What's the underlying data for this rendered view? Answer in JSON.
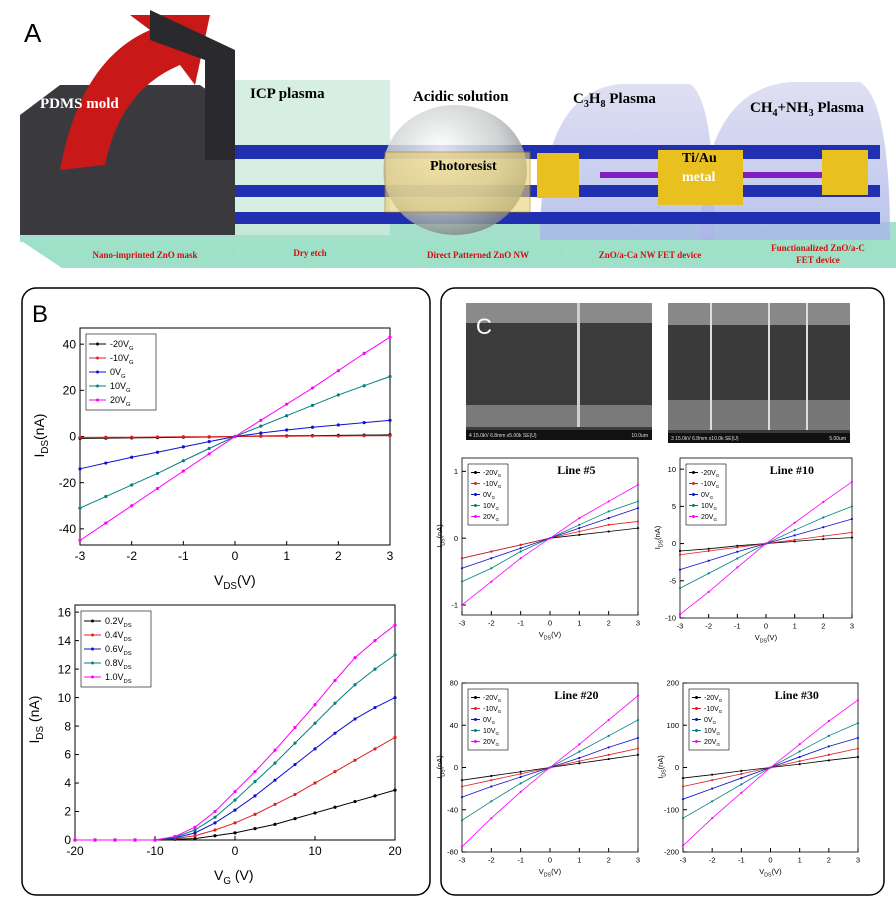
{
  "panel_labels": {
    "a": "A",
    "b": "B",
    "c": "C"
  },
  "diagram": {
    "top_labels": {
      "pdms": "PDMS mold",
      "icp": "ICP plasma",
      "acid": "Acidic solution",
      "c3h8": [
        "C",
        "3",
        "H",
        "8",
        " Plasma"
      ],
      "ch4": [
        "CH",
        "4",
        "+NH",
        "3",
        " Plasma"
      ],
      "photoresist": "Photoresist",
      "metal": [
        "Ti/Au",
        "metal"
      ]
    },
    "steps": [
      "Nano-imprinted ZnO mask",
      "Dry etch",
      "Direct Patterned ZnO NW",
      "ZnO/a-Ca NW FET device",
      [
        "Functionalized ZnO/a-C",
        "FET device"
      ]
    ]
  },
  "sem": [
    {
      "info": "4 15.0kV 6.8mm x5.00k SE(U)",
      "scale": "10.0um"
    },
    {
      "info": "3 15.0kV 6.8mm x10.0k SE(U)",
      "scale": "5.00um"
    }
  ],
  "chart_data": [
    {
      "type": "line",
      "xlabel": [
        "V",
        "DS",
        "(V)"
      ],
      "ylabel": [
        "I",
        "DS",
        "(nA)"
      ],
      "x": [
        -3,
        -2.5,
        -2,
        -1.5,
        -1,
        -0.5,
        0,
        0.5,
        1,
        1.5,
        2,
        2.5,
        3
      ],
      "xlim": [
        -3,
        3
      ],
      "xticks": [
        -3,
        -2,
        -1,
        0,
        1,
        2,
        3
      ],
      "ylim": [
        -47,
        47
      ],
      "yticks": [
        -40,
        -20,
        0,
        20,
        40
      ],
      "series": [
        {
          "name": "-20V",
          "name_sub": "G",
          "color": "#000000",
          "values": [
            -0.8,
            -0.7,
            -0.6,
            -0.5,
            -0.3,
            -0.2,
            0,
            0.2,
            0.3,
            0.4,
            0.5,
            0.6,
            0.7
          ]
        },
        {
          "name": "-10V",
          "name_sub": "G",
          "color": "#e02020",
          "values": [
            -0.4,
            -0.3,
            -0.3,
            -0.2,
            -0.1,
            -0.1,
            0,
            0.1,
            0.1,
            0.2,
            0.2,
            0.3,
            0.3
          ]
        },
        {
          "name": "0V",
          "name_sub": "G",
          "color": "#1010d0",
          "values": [
            -14,
            -11.5,
            -9,
            -6.8,
            -4.5,
            -2.2,
            0,
            1.5,
            2.8,
            4,
            5,
            6,
            7
          ]
        },
        {
          "name": "10V",
          "name_sub": "G",
          "color": "#008080",
          "values": [
            -31,
            -26,
            -21,
            -16,
            -10.5,
            -5.2,
            0,
            4.5,
            9,
            13.5,
            18,
            22,
            26
          ]
        },
        {
          "name": "20V",
          "name_sub": "G",
          "color": "#ff00ff",
          "values": [
            -45,
            -37.5,
            -30,
            -22.5,
            -15,
            -7.5,
            0,
            7,
            14,
            21,
            28.5,
            36,
            43
          ]
        }
      ]
    },
    {
      "type": "line",
      "xlabel": [
        "V",
        "G",
        " (V)"
      ],
      "ylabel": [
        "I",
        "DS",
        " (nA)"
      ],
      "x": [
        -20,
        -17.5,
        -15,
        -12.5,
        -10,
        -7.5,
        -5,
        -2.5,
        0,
        2.5,
        5,
        7.5,
        10,
        12.5,
        15,
        17.5,
        20
      ],
      "xlim": [
        -20,
        20
      ],
      "xticks": [
        -20,
        -10,
        0,
        10,
        20
      ],
      "ylim": [
        0,
        16.5
      ],
      "yticks": [
        0,
        2,
        4,
        6,
        8,
        10,
        12,
        14,
        16
      ],
      "series": [
        {
          "name": "0.2V",
          "name_sub": "DS",
          "color": "#000000",
          "values": [
            0,
            0,
            0,
            0,
            0,
            0.05,
            0.1,
            0.3,
            0.5,
            0.8,
            1.1,
            1.5,
            1.9,
            2.3,
            2.7,
            3.1,
            3.5
          ]
        },
        {
          "name": "0.4V",
          "name_sub": "DS",
          "color": "#e02020",
          "values": [
            0,
            0,
            0,
            0,
            0,
            0.1,
            0.3,
            0.7,
            1.2,
            1.8,
            2.5,
            3.2,
            4,
            4.8,
            5.6,
            6.4,
            7.2
          ]
        },
        {
          "name": "0.6V",
          "name_sub": "DS",
          "color": "#1010d0",
          "values": [
            0,
            0,
            0,
            0,
            0,
            0.15,
            0.5,
            1.2,
            2.1,
            3.1,
            4.2,
            5.3,
            6.4,
            7.5,
            8.5,
            9.3,
            10
          ]
        },
        {
          "name": "0.8V",
          "name_sub": "DS",
          "color": "#008080",
          "values": [
            0,
            0,
            0,
            0,
            0,
            0.2,
            0.7,
            1.6,
            2.8,
            4.1,
            5.4,
            6.8,
            8.2,
            9.6,
            10.9,
            12,
            13
          ]
        },
        {
          "name": "1.0V",
          "name_sub": "DS",
          "color": "#ff00ff",
          "values": [
            0,
            0,
            0,
            0,
            0,
            0.25,
            0.9,
            2,
            3.4,
            4.8,
            6.3,
            7.9,
            9.5,
            11.2,
            12.8,
            14,
            15.1
          ]
        }
      ]
    },
    {
      "type": "line",
      "title": "Line #5",
      "xlabel": [
        "V",
        "DS",
        "(V)"
      ],
      "ylabel": [
        "I",
        "DS",
        "(nA)"
      ],
      "x": [
        -3,
        -2,
        -1,
        0,
        1,
        2,
        3
      ],
      "xlim": [
        -3,
        3
      ],
      "xticks": [
        -3,
        -2,
        -1,
        0,
        1,
        2,
        3
      ],
      "ylim": [
        -1.15,
        1.2
      ],
      "yticks": [
        -1,
        0,
        1
      ],
      "series": [
        {
          "name": "-20V",
          "name_sub": "G",
          "color": "#000000",
          "values": [
            -0.3,
            -0.2,
            -0.1,
            0,
            0.05,
            0.1,
            0.15
          ]
        },
        {
          "name": "-10V",
          "name_sub": "G",
          "color": "#e02020",
          "values": [
            -0.3,
            -0.2,
            -0.1,
            0,
            0.1,
            0.2,
            0.25
          ]
        },
        {
          "name": "0V",
          "name_sub": "G",
          "color": "#1010d0",
          "values": [
            -0.45,
            -0.3,
            -0.15,
            0,
            0.15,
            0.3,
            0.45
          ]
        },
        {
          "name": "10V",
          "name_sub": "G",
          "color": "#008080",
          "values": [
            -0.65,
            -0.45,
            -0.2,
            0,
            0.2,
            0.4,
            0.55
          ]
        },
        {
          "name": "20V",
          "name_sub": "G",
          "color": "#ff00ff",
          "values": [
            -1,
            -0.65,
            -0.3,
            0,
            0.3,
            0.55,
            0.8
          ]
        }
      ]
    },
    {
      "type": "line",
      "title": "Line #10",
      "xlabel": [
        "V",
        "DS",
        "(V)"
      ],
      "ylabel": [
        "I",
        "DS",
        "(nA)"
      ],
      "x": [
        -3,
        -2,
        -1,
        0,
        1,
        2,
        3
      ],
      "xlim": [
        -3,
        3
      ],
      "xticks": [
        -3,
        -2,
        -1,
        0,
        1,
        2,
        3
      ],
      "ylim": [
        -10,
        11.5
      ],
      "yticks": [
        -10,
        -5,
        0,
        5,
        10
      ],
      "series": [
        {
          "name": "-20V",
          "name_sub": "G",
          "color": "#000000",
          "values": [
            -1,
            -0.7,
            -0.3,
            0,
            0.3,
            0.6,
            0.8
          ]
        },
        {
          "name": "-10V",
          "name_sub": "G",
          "color": "#e02020",
          "values": [
            -1.5,
            -1,
            -0.5,
            0,
            0.5,
            1,
            1.5
          ]
        },
        {
          "name": "0V",
          "name_sub": "G",
          "color": "#1010d0",
          "values": [
            -3.5,
            -2.3,
            -1.1,
            0,
            1.1,
            2.2,
            3.3
          ]
        },
        {
          "name": "10V",
          "name_sub": "G",
          "color": "#008080",
          "values": [
            -6,
            -4,
            -2,
            0,
            1.8,
            3.5,
            5
          ]
        },
        {
          "name": "20V",
          "name_sub": "G",
          "color": "#ff00ff",
          "values": [
            -9.5,
            -6.5,
            -3.2,
            0,
            2.8,
            5.6,
            8.3
          ]
        }
      ]
    },
    {
      "type": "line",
      "title": "Line #20",
      "xlabel": [
        "V",
        "DS",
        "(V)"
      ],
      "ylabel": [
        "I",
        "DS",
        "(nA)"
      ],
      "x": [
        -3,
        -2,
        -1,
        0,
        1,
        2,
        3
      ],
      "xlim": [
        -3,
        3
      ],
      "xticks": [
        -3,
        -2,
        -1,
        0,
        1,
        2,
        3
      ],
      "ylim": [
        -80,
        80
      ],
      "yticks": [
        -80,
        -40,
        0,
        40,
        80
      ],
      "series": [
        {
          "name": "-20V",
          "name_sub": "G",
          "color": "#000000",
          "values": [
            -12,
            -8,
            -4,
            0,
            4,
            8,
            12
          ]
        },
        {
          "name": "-10V",
          "name_sub": "G",
          "color": "#e02020",
          "values": [
            -18,
            -12,
            -6,
            0,
            6,
            12,
            18
          ]
        },
        {
          "name": "0V",
          "name_sub": "G",
          "color": "#1010d0",
          "values": [
            -28,
            -18,
            -9,
            0,
            9,
            19,
            28
          ]
        },
        {
          "name": "10V",
          "name_sub": "G",
          "color": "#008080",
          "values": [
            -50,
            -32,
            -15,
            0,
            15,
            30,
            45
          ]
        },
        {
          "name": "20V",
          "name_sub": "G",
          "color": "#ff00ff",
          "values": [
            -75,
            -48,
            -23,
            0,
            22,
            45,
            68
          ]
        }
      ]
    },
    {
      "type": "line",
      "title": "Line #30",
      "xlabel": [
        "V",
        "DS",
        "(V)"
      ],
      "ylabel": [
        "I",
        "DS",
        "(nA)"
      ],
      "x": [
        -3,
        -2,
        -1,
        0,
        1,
        2,
        3
      ],
      "xlim": [
        -3,
        3
      ],
      "xticks": [
        -3,
        -2,
        -1,
        0,
        1,
        2,
        3
      ],
      "ylim": [
        -200,
        200
      ],
      "yticks": [
        -200,
        -100,
        0,
        100,
        200
      ],
      "series": [
        {
          "name": "-20V",
          "name_sub": "G",
          "color": "#000000",
          "values": [
            -25,
            -17,
            -8,
            0,
            8,
            17,
            25
          ]
        },
        {
          "name": "-10V",
          "name_sub": "G",
          "color": "#e02020",
          "values": [
            -45,
            -30,
            -15,
            0,
            15,
            30,
            45
          ]
        },
        {
          "name": "0V",
          "name_sub": "G",
          "color": "#1010d0",
          "values": [
            -75,
            -50,
            -25,
            0,
            25,
            50,
            70
          ]
        },
        {
          "name": "10V",
          "name_sub": "G",
          "color": "#008080",
          "values": [
            -120,
            -80,
            -40,
            0,
            38,
            75,
            105
          ]
        },
        {
          "name": "20V",
          "name_sub": "G",
          "color": "#ff00ff",
          "values": [
            -185,
            -120,
            -60,
            0,
            55,
            110,
            160
          ]
        }
      ]
    }
  ]
}
